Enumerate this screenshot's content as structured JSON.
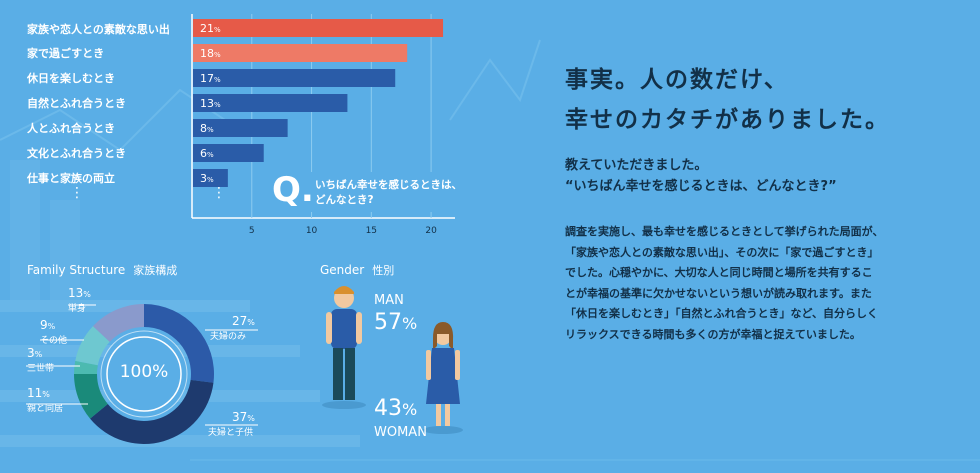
{
  "chart_data": [
    {
      "type": "bar",
      "orientation": "horizontal",
      "categories": [
        "家族や恋人との素敵な思い出",
        "家で過ごすとき",
        "休日を楽しむとき",
        "自然とふれ合うとき",
        "人とふれ合うとき",
        "文化とふれ合うとき",
        "仕事と家族の両立"
      ],
      "values": [
        21,
        18,
        17,
        13,
        8,
        6,
        3
      ],
      "value_unit": "%",
      "colors": [
        "#e65a48",
        "#ee7a66",
        "#2a5ca8",
        "#2a5ca8",
        "#2a5ca8",
        "#2a5ca8",
        "#2a5ca8"
      ],
      "xlim": [
        0,
        22
      ],
      "xticks": [
        5,
        10,
        15,
        20
      ],
      "question_letter": "Q.",
      "question_lines": [
        "いちばん幸せを感じるときは、",
        "どんなとき?"
      ],
      "continuation": "⋮"
    },
    {
      "type": "pie",
      "donut": true,
      "title": "Family Structure",
      "title_sub": "家族構成",
      "center_label": "100%",
      "slices": [
        {
          "name": "夫婦のみ",
          "value": 27,
          "color": "#2c5aa8"
        },
        {
          "name": "夫婦と子供",
          "value": 37,
          "color": "#1e3a6e"
        },
        {
          "name": "親と同居",
          "value": 11,
          "color": "#1a8a7a"
        },
        {
          "name": "三世帯",
          "value": 3,
          "color": "#4cbab0"
        },
        {
          "name": "その他",
          "value": 9,
          "color": "#6ec8d0"
        },
        {
          "name": "単身",
          "value": 13,
          "color": "#8a9acc"
        }
      ],
      "unit": "%"
    },
    {
      "type": "table",
      "title": "Gender",
      "title_sub": "性別",
      "entries": [
        {
          "name": "MAN",
          "value": 57,
          "unit": "%"
        },
        {
          "name": "WOMAN",
          "value": 43,
          "unit": "%"
        }
      ]
    }
  ],
  "headline": [
    "事実。人の数だけ、",
    "幸せのカタチがありました。"
  ],
  "sub_head": [
    "教えていただきました。",
    "“いちばん幸せを感じるときは、どんなとき?”"
  ],
  "body": [
    "調査を実施し、最も幸せを感じるときとして挙げられた局面が、",
    "「家族や恋人との素敵な思い出」、その次に「家で過ごすとき」",
    "でした。心穏やかに、大切な人と同じ時間と場所を共有するこ",
    "とが幸福の基準に欠かせないという想いが読み取れます。また",
    "「休日を楽しむとき」「自然とふれ合うとき」など、自分らしく",
    "リラックスできる時間も多くの方が幸福と捉えていました。"
  ],
  "colors": {
    "background": "#5aaee6",
    "text_dark": "#123048",
    "man_shirt": "#2a5ca8",
    "woman_dress": "#2a5ca8"
  }
}
